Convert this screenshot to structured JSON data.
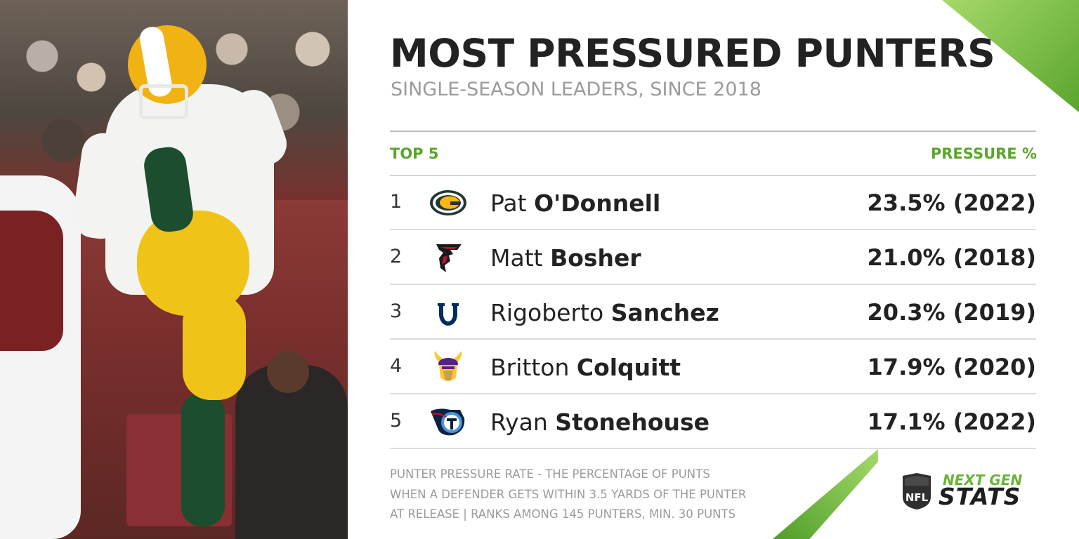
{
  "title": "MOST PRESSURED PUNTERS",
  "subtitle": "SINGLE-SEASON LEADERS, SINCE 2018",
  "columns": {
    "left": "TOP 5",
    "right": "PRESSURE %"
  },
  "rows": [
    {
      "rank": "1",
      "first": "Pat",
      "last": "O'Donnell",
      "pct": "23.5% (2022)",
      "team_icon": "packers-logo-icon"
    },
    {
      "rank": "2",
      "first": "Matt",
      "last": "Bosher",
      "pct": "21.0% (2018)",
      "team_icon": "falcons-logo-icon"
    },
    {
      "rank": "3",
      "first": "Rigoberto",
      "last": "Sanchez",
      "pct": "20.3% (2019)",
      "team_icon": "colts-logo-icon"
    },
    {
      "rank": "4",
      "first": "Britton",
      "last": "Colquitt",
      "pct": "17.9% (2020)",
      "team_icon": "vikings-logo-icon"
    },
    {
      "rank": "5",
      "first": "Ryan",
      "last": "Stonehouse",
      "pct": "17.1% (2022)",
      "team_icon": "titans-logo-icon"
    }
  ],
  "footnote": [
    "PUNTER PRESSURE RATE - THE PERCENTAGE OF PUNTS",
    "WHEN A DEFENDER GETS WITHIN 3.5 YARDS OF THE PUNTER",
    "AT RELEASE | RANKS AMONG 145 PUNTERS, MIN. 30 PUNTS"
  ],
  "brand": {
    "line1": "NEXT GEN",
    "line2": "STATS",
    "shield": "NFL"
  },
  "colors": {
    "accent": "#5aa52d",
    "text": "#222222",
    "muted": "#9b9b9b"
  }
}
